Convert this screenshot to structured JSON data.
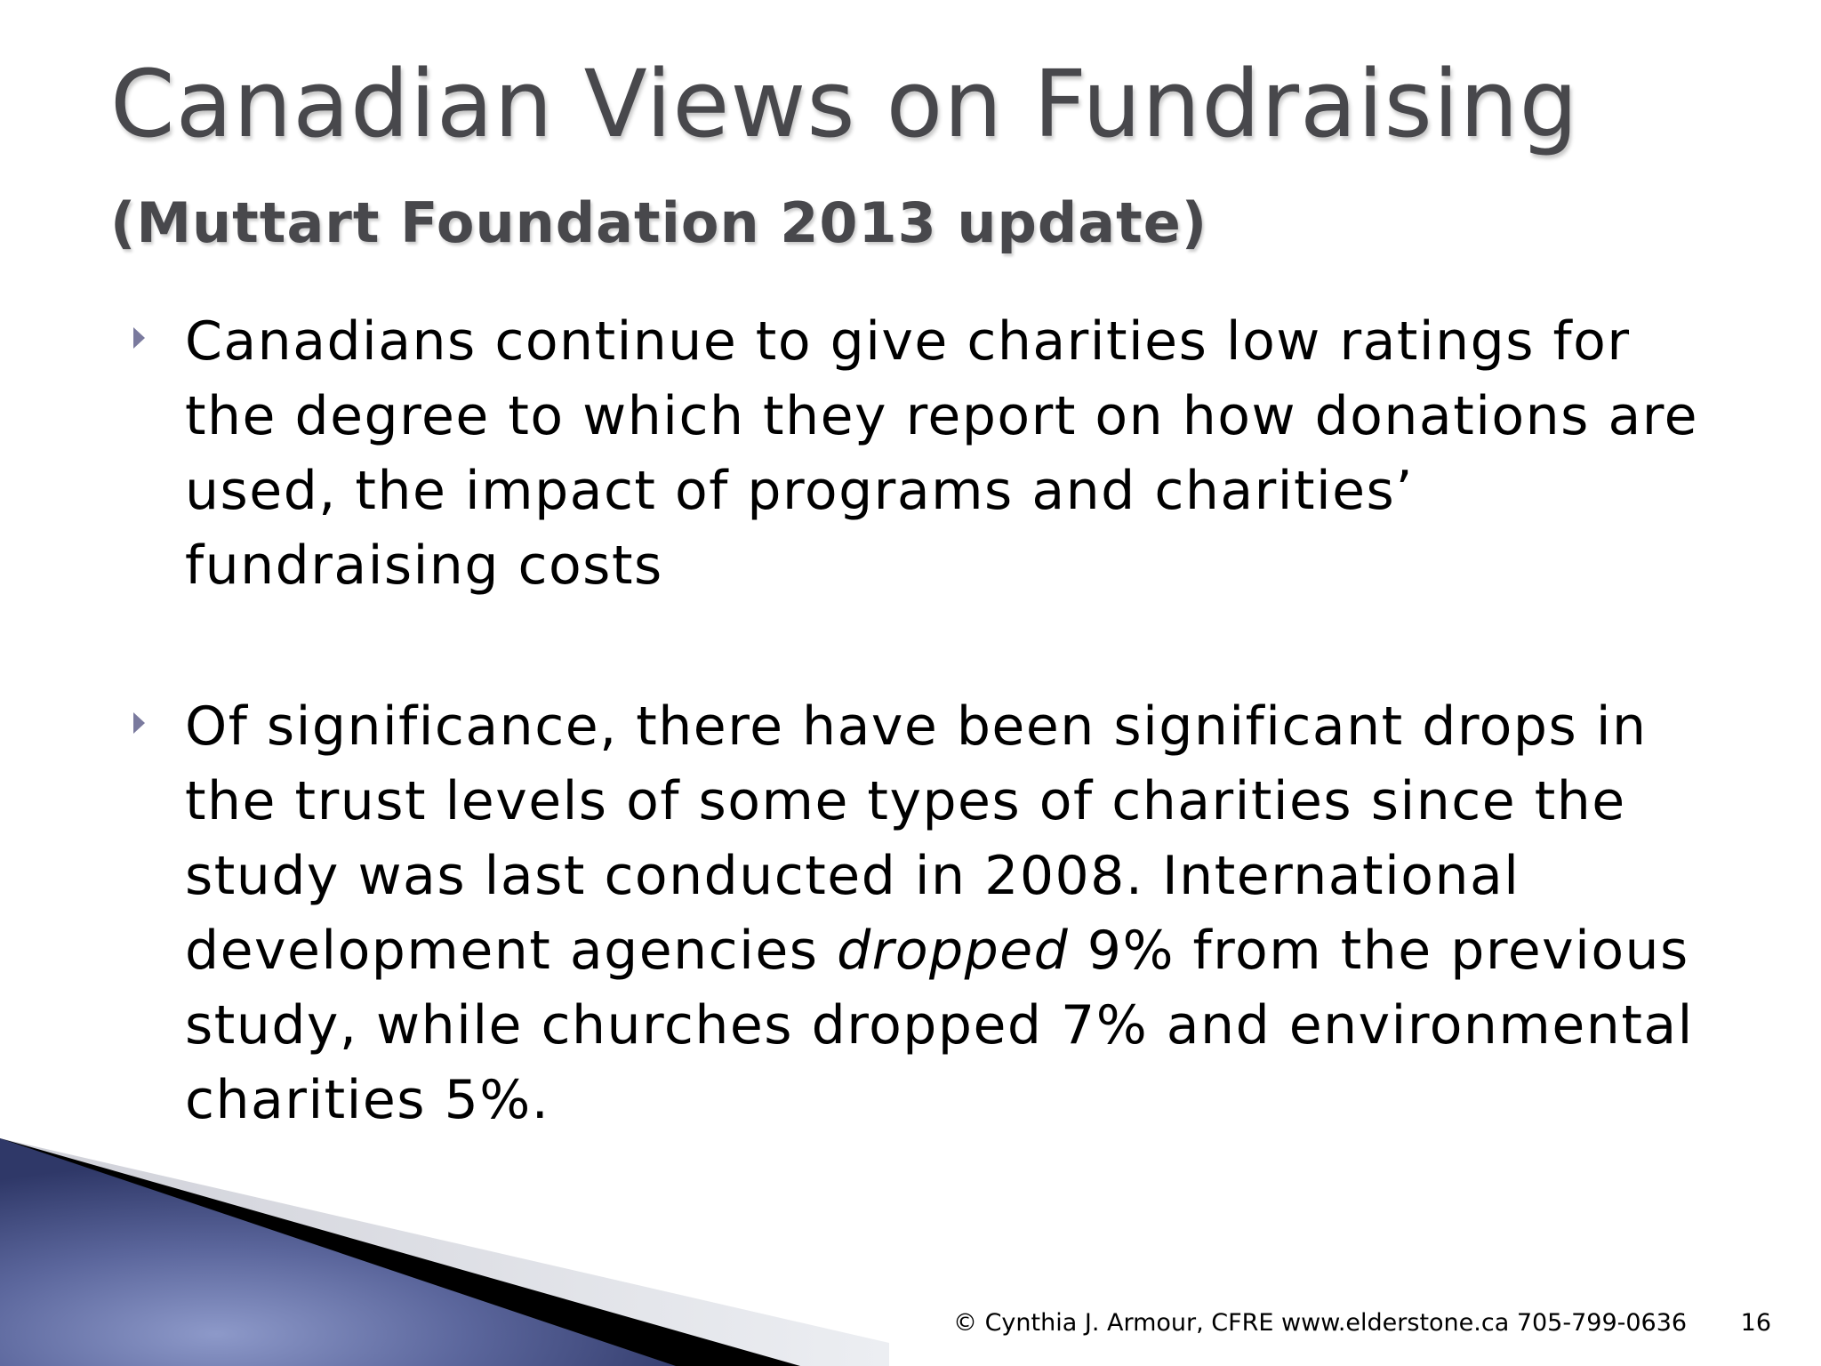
{
  "slide": {
    "title": "Canadian Views on Fundraising",
    "subtitle": "(Muttart Foundation 2013 update)",
    "bullets": [
      {
        "text": "Canadians continue to give charities low ratings for the degree to which they report on how donations are used, the impact of programs and charities’ fundraising costs"
      },
      {
        "text_before": "Of significance, there have been significant drops in the trust levels of some types of charities since the study was last conducted in 2008. International development agencies ",
        "text_emphasis": "dropped",
        "text_after": " 9% from the previous study, while churches dropped 7% and environmental charities 5%."
      }
    ],
    "footer": "© Cynthia J. Armour, CFRE www.elderstone.ca 705-799-0636",
    "page_number": "16"
  },
  "icons": {
    "bullet": "triangle-right-bullet-icon"
  },
  "colors": {
    "title": "#48484c",
    "body_text": "#000000",
    "bullet_marker": "#7a7a9e",
    "corner_blue": "#3f4a80",
    "corner_highlight": "#8d99c9",
    "corner_stripe": "#000000",
    "corner_grey": "#d9dae0"
  }
}
